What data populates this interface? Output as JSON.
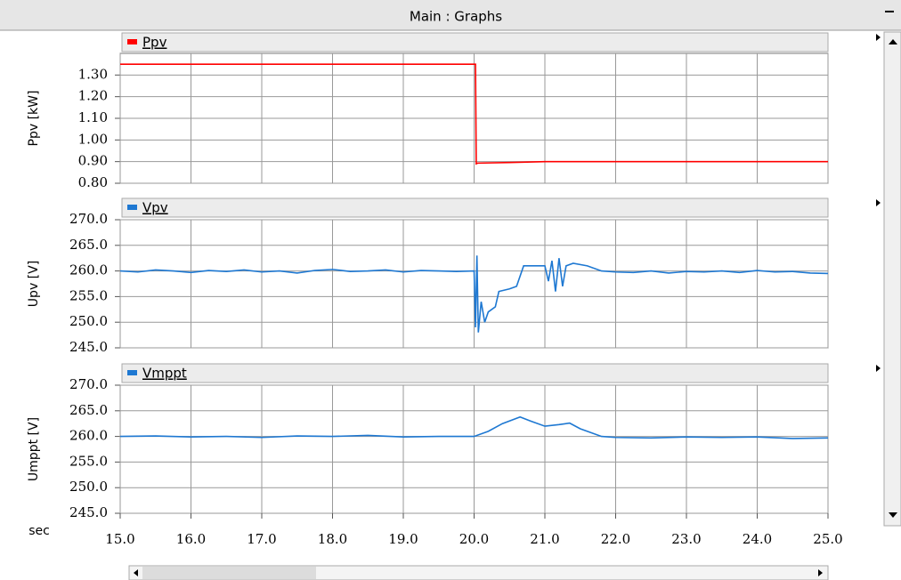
{
  "window": {
    "title": "Main : Graphs"
  },
  "chart_data": [
    {
      "type": "line",
      "y_label": "Ppv [kW]",
      "grid": true,
      "xlim": [
        15,
        25
      ],
      "xticks": [
        {
          "value": 15,
          "label": "15.0"
        },
        {
          "value": 16,
          "label": "16.0"
        },
        {
          "value": 17,
          "label": "17.0"
        },
        {
          "value": 18,
          "label": "18.0"
        },
        {
          "value": 19,
          "label": "19.0"
        },
        {
          "value": 20,
          "label": "20.0"
        },
        {
          "value": 21,
          "label": "21.0"
        },
        {
          "value": 22,
          "label": "22.0"
        },
        {
          "value": 23,
          "label": "23.0"
        },
        {
          "value": 24,
          "label": "24.0"
        },
        {
          "value": 25,
          "label": "25.0"
        }
      ],
      "ylim": [
        0.8,
        1.4
      ],
      "yticks": [
        {
          "value": 0.8,
          "label": "0.80"
        },
        {
          "value": 0.9,
          "label": "0.90"
        },
        {
          "value": 1.0,
          "label": "1.00"
        },
        {
          "value": 1.1,
          "label": "1.10"
        },
        {
          "value": 1.2,
          "label": "1.20"
        },
        {
          "value": 1.3,
          "label": "1.30"
        }
      ],
      "x": [
        15,
        20.02,
        20.03,
        20.05,
        20.5,
        21.0,
        21.1,
        25
      ],
      "series": [
        {
          "name": "Ppv",
          "color": "#ff0000",
          "values": [
            1.35,
            1.35,
            0.89,
            0.893,
            0.896,
            0.9,
            0.9,
            0.9
          ]
        }
      ]
    },
    {
      "type": "line",
      "y_label": "Upv [V]",
      "grid": true,
      "xlim": [
        15,
        25
      ],
      "xticks": [
        {
          "value": 15,
          "label": "15.0"
        },
        {
          "value": 16,
          "label": "16.0"
        },
        {
          "value": 17,
          "label": "17.0"
        },
        {
          "value": 18,
          "label": "18.0"
        },
        {
          "value": 19,
          "label": "19.0"
        },
        {
          "value": 20,
          "label": "20.0"
        },
        {
          "value": 21,
          "label": "21.0"
        },
        {
          "value": 22,
          "label": "22.0"
        },
        {
          "value": 23,
          "label": "23.0"
        },
        {
          "value": 24,
          "label": "24.0"
        },
        {
          "value": 25,
          "label": "25.0"
        }
      ],
      "ylim": [
        245,
        270
      ],
      "yticks": [
        {
          "value": 245,
          "label": "245.0"
        },
        {
          "value": 250,
          "label": "250.0"
        },
        {
          "value": 255,
          "label": "255.0"
        },
        {
          "value": 260,
          "label": "260.0"
        },
        {
          "value": 265,
          "label": "265.0"
        },
        {
          "value": 270,
          "label": "270.0"
        }
      ],
      "x": [
        15.0,
        15.25,
        15.5,
        15.75,
        16.0,
        16.25,
        16.5,
        16.75,
        17.0,
        17.25,
        17.5,
        17.75,
        18.0,
        18.25,
        18.5,
        18.75,
        19.0,
        19.25,
        19.5,
        19.75,
        20.0,
        20.02,
        20.04,
        20.06,
        20.1,
        20.15,
        20.2,
        20.3,
        20.35,
        20.5,
        20.6,
        20.7,
        20.9,
        21.0,
        21.05,
        21.1,
        21.15,
        21.2,
        21.25,
        21.3,
        21.4,
        21.6,
        21.8,
        22.0,
        22.25,
        22.5,
        22.75,
        23.0,
        23.25,
        23.5,
        23.75,
        24.0,
        24.25,
        24.5,
        24.75,
        25.0
      ],
      "series": [
        {
          "name": "Vpv",
          "color": "#1e78d2",
          "values": [
            260.0,
            259.8,
            260.2,
            260.0,
            259.7,
            260.1,
            259.9,
            260.2,
            259.8,
            260.0,
            259.6,
            260.1,
            260.3,
            259.9,
            260.0,
            260.2,
            259.8,
            260.1,
            260.0,
            259.9,
            260.0,
            249,
            263,
            248,
            254,
            250,
            252,
            253,
            256,
            256.5,
            257,
            261,
            261,
            261,
            258,
            262,
            256,
            262.5,
            257,
            261,
            261.5,
            261,
            260,
            259.8,
            259.7,
            260.0,
            259.6,
            259.9,
            259.8,
            260.0,
            259.7,
            260.1,
            259.8,
            259.9,
            259.6,
            259.5
          ]
        }
      ]
    },
    {
      "type": "line",
      "y_label": "Umppt [V]",
      "x_label": "sec",
      "grid": true,
      "xlim": [
        15,
        25
      ],
      "xticks": [
        {
          "value": 15,
          "label": "15.0"
        },
        {
          "value": 16,
          "label": "16.0"
        },
        {
          "value": 17,
          "label": "17.0"
        },
        {
          "value": 18,
          "label": "18.0"
        },
        {
          "value": 19,
          "label": "19.0"
        },
        {
          "value": 20,
          "label": "20.0"
        },
        {
          "value": 21,
          "label": "21.0"
        },
        {
          "value": 22,
          "label": "22.0"
        },
        {
          "value": 23,
          "label": "23.0"
        },
        {
          "value": 24,
          "label": "24.0"
        },
        {
          "value": 25,
          "label": "25.0"
        }
      ],
      "ylim": [
        245,
        270
      ],
      "yticks": [
        {
          "value": 245,
          "label": "245.0"
        },
        {
          "value": 250,
          "label": "250.0"
        },
        {
          "value": 255,
          "label": "255.0"
        },
        {
          "value": 260,
          "label": "260.0"
        },
        {
          "value": 265,
          "label": "265.0"
        },
        {
          "value": 270,
          "label": "270.0"
        }
      ],
      "x": [
        15.0,
        15.5,
        16.0,
        16.5,
        17.0,
        17.5,
        18.0,
        18.5,
        19.0,
        19.5,
        20.0,
        20.2,
        20.4,
        20.65,
        20.8,
        21.0,
        21.2,
        21.35,
        21.5,
        21.8,
        22.0,
        22.5,
        23.0,
        23.5,
        24.0,
        24.5,
        25.0
      ],
      "series": [
        {
          "name": "Vmppt",
          "color": "#1e78d2",
          "values": [
            260.0,
            260.1,
            259.9,
            260.0,
            259.8,
            260.1,
            260.0,
            260.2,
            259.9,
            260.0,
            260.0,
            261,
            262.5,
            263.8,
            263,
            262,
            262.3,
            262.6,
            261.5,
            260,
            259.8,
            259.7,
            259.9,
            259.8,
            259.9,
            259.6,
            259.7
          ]
        }
      ]
    }
  ]
}
